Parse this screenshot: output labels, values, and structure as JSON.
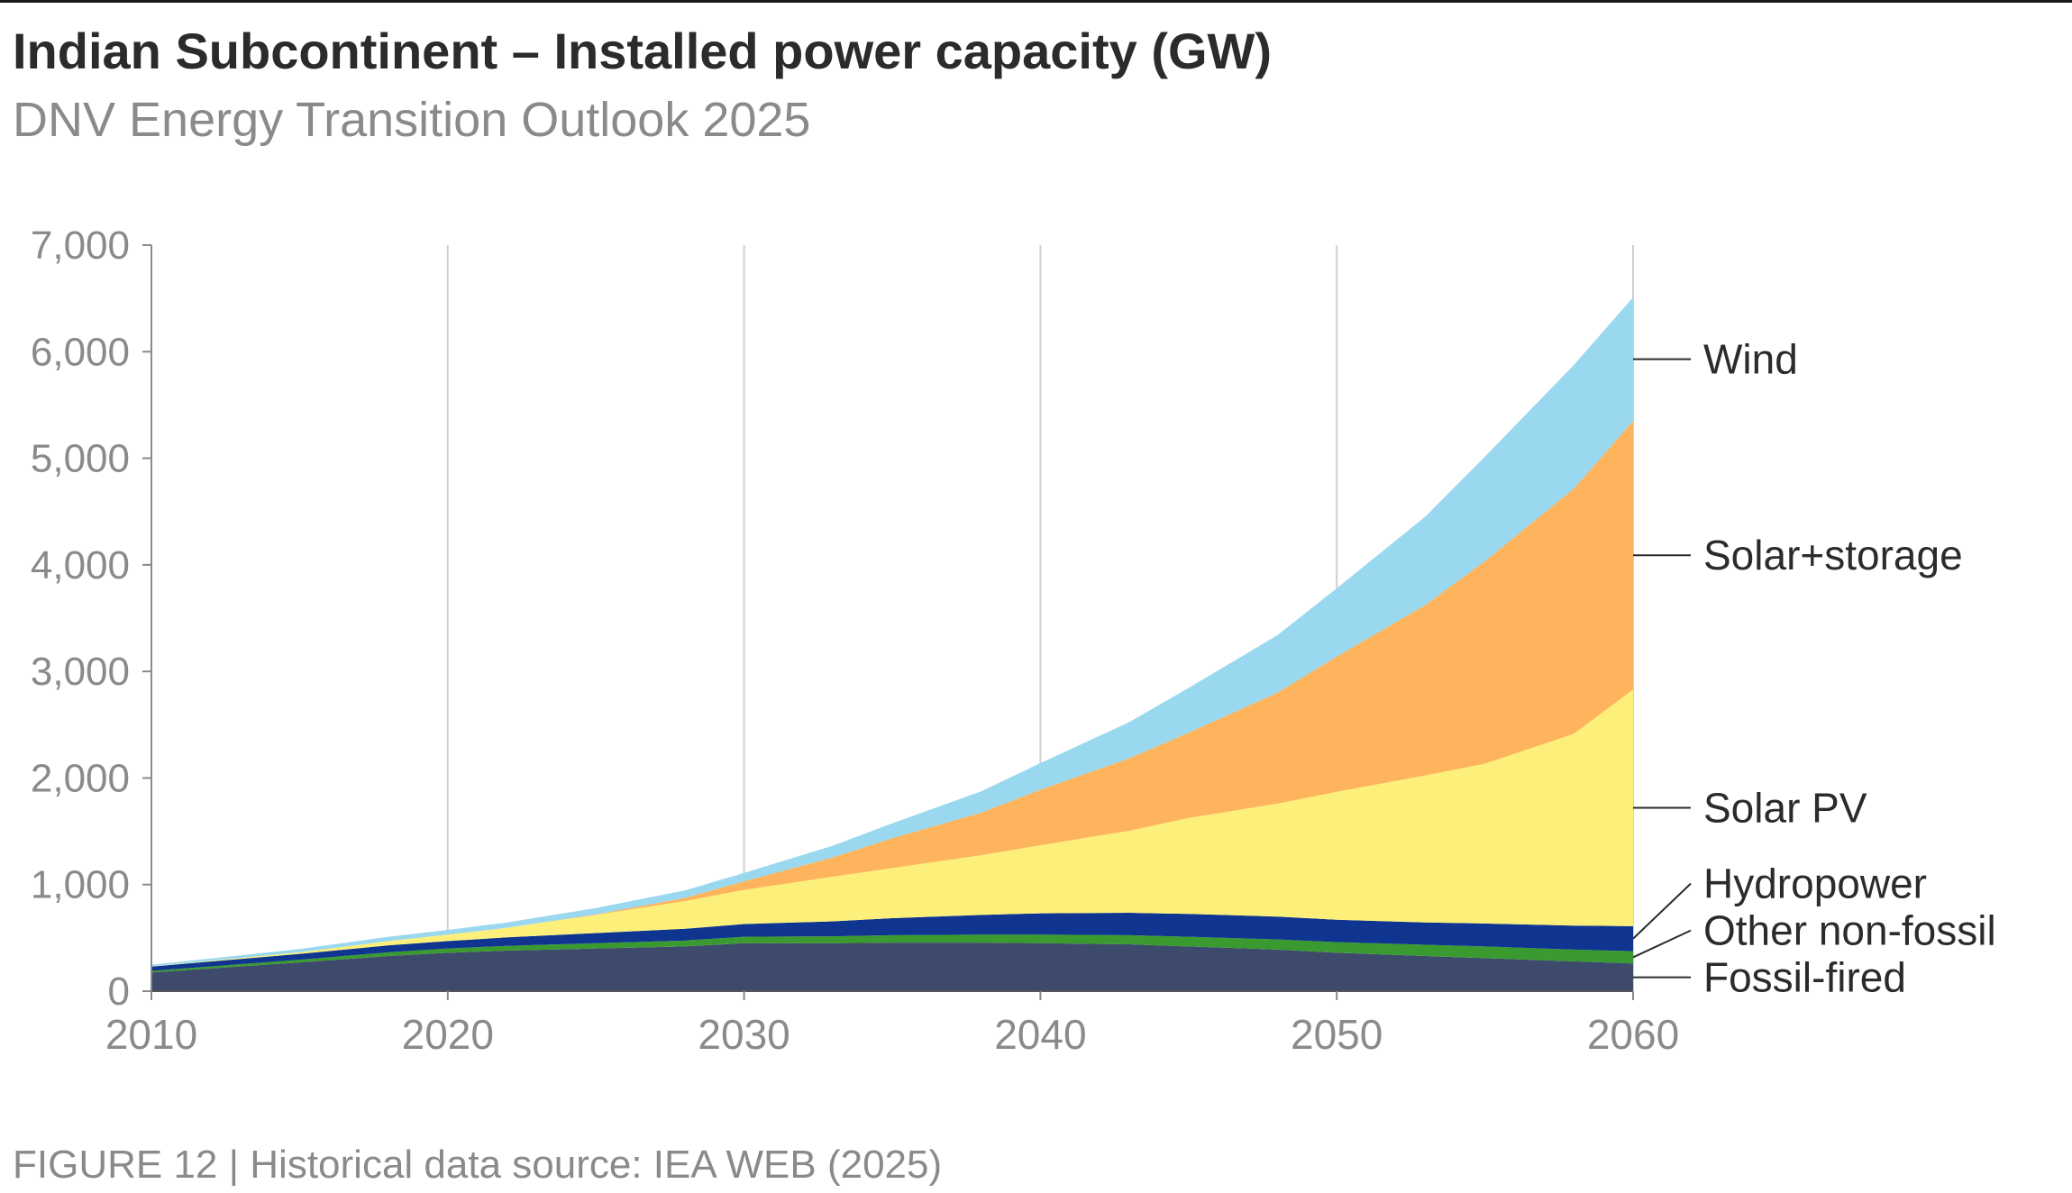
{
  "header": {
    "title": "Indian Subcontinent – Installed power capacity (GW)",
    "subtitle": "DNV Energy Transition Outlook 2025"
  },
  "footer": {
    "caption": "FIGURE 12 | Historical data source: IEA WEB (2025)"
  },
  "colors": {
    "fossil": "#3d4a6b",
    "other_nonfossil": "#3a9a2f",
    "hydro": "#0f3590",
    "solar_pv": "#fdf07a",
    "solar_storage": "#fdb45c",
    "wind": "#9ad8f0",
    "axis": "#8a8a8a",
    "grid": "#d0d0d0"
  },
  "chart_data": {
    "type": "area",
    "stacked": true,
    "title": "Indian Subcontinent – Installed power capacity (GW)",
    "subtitle": "DNV Energy Transition Outlook 2025",
    "xlabel": "",
    "ylabel": "",
    "xlim": [
      2010,
      2060
    ],
    "ylim": [
      0,
      7000
    ],
    "x_ticks": [
      "2010",
      "2020",
      "2030",
      "2040",
      "2050",
      "2060"
    ],
    "y_ticks": [
      "0",
      "1,000",
      "2,000",
      "3,000",
      "4,000",
      "5,000",
      "6,000",
      "7,000"
    ],
    "grid": "vertical at decade ticks",
    "legend": "direct labels at right end",
    "x": [
      2010,
      2015,
      2018,
      2020,
      2022,
      2025,
      2028,
      2030,
      2033,
      2035,
      2038,
      2040,
      2043,
      2045,
      2048,
      2050,
      2053,
      2055,
      2058,
      2060
    ],
    "series": [
      {
        "name": "Fossil-fired",
        "color_key": "fossil",
        "values": [
          175,
          270,
          330,
          360,
          380,
          400,
          420,
          450,
          450,
          455,
          455,
          450,
          440,
          420,
          390,
          360,
          330,
          310,
          280,
          260
        ]
      },
      {
        "name": "Other non-fossil",
        "color_key": "other_nonfossil",
        "values": [
          15,
          25,
          35,
          40,
          45,
          50,
          55,
          60,
          65,
          70,
          75,
          80,
          85,
          90,
          95,
          100,
          105,
          110,
          110,
          115
        ]
      },
      {
        "name": "Hydropower",
        "color_key": "hydro",
        "values": [
          40,
          55,
          65,
          70,
          80,
          95,
          110,
          120,
          140,
          160,
          185,
          200,
          210,
          215,
          215,
          210,
          210,
          215,
          225,
          235
        ]
      },
      {
        "name": "Solar PV",
        "color_key": "solar_pv",
        "values": [
          2,
          15,
          40,
          60,
          90,
          170,
          260,
          320,
          420,
          470,
          560,
          640,
          770,
          900,
          1060,
          1200,
          1380,
          1500,
          1800,
          2220
        ]
      },
      {
        "name": "Solar+storage",
        "color_key": "solar_storage",
        "values": [
          0,
          0,
          0,
          0,
          0,
          5,
          30,
          80,
          180,
          280,
          400,
          520,
          680,
          800,
          1040,
          1270,
          1600,
          1900,
          2300,
          2520
        ]
      },
      {
        "name": "Wind",
        "color_key": "wind",
        "values": [
          15,
          30,
          40,
          45,
          50,
          60,
          70,
          80,
          110,
          140,
          200,
          250,
          340,
          420,
          540,
          640,
          830,
          980,
          1160,
          1160
        ]
      }
    ]
  }
}
